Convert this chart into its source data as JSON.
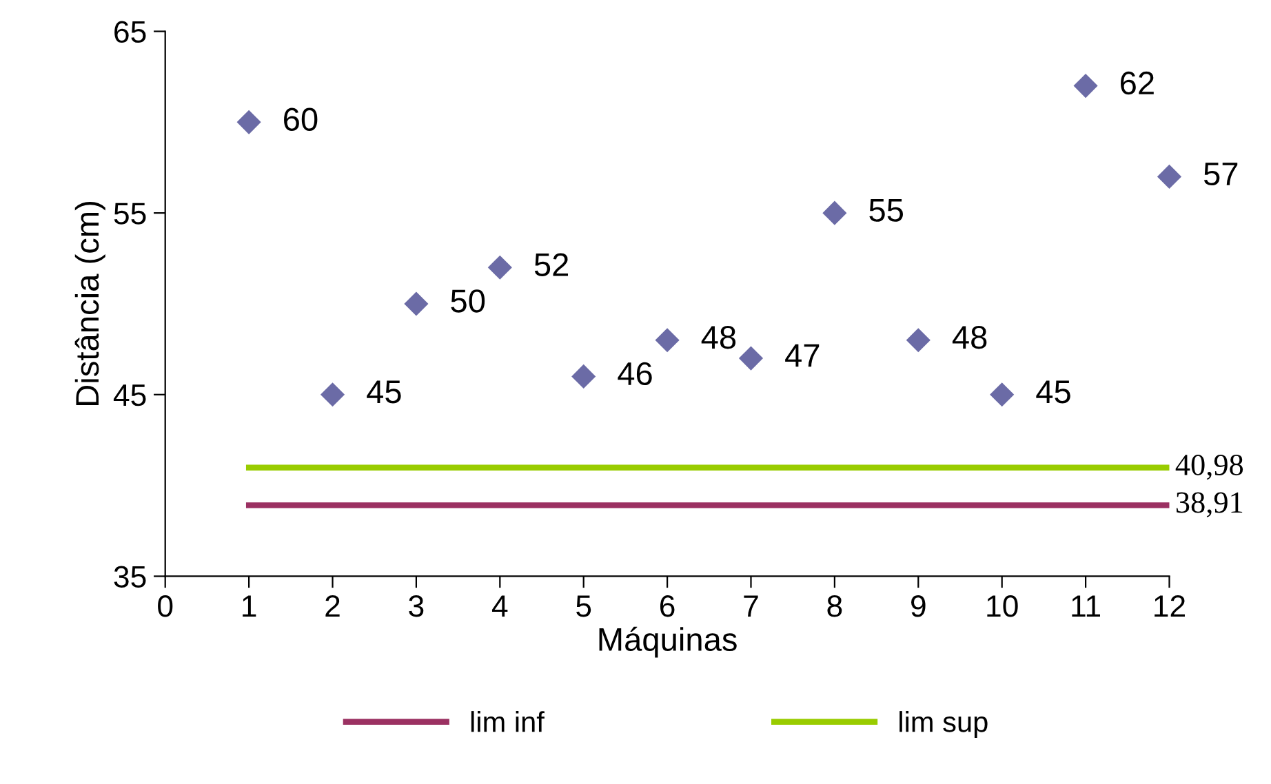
{
  "chart_data": {
    "type": "scatter",
    "xlabel": "Máquinas",
    "ylabel": "Distância (cm)",
    "xlim": [
      0,
      12
    ],
    "xticks": [
      0,
      1,
      2,
      3,
      4,
      5,
      6,
      7,
      8,
      9,
      10,
      11,
      12
    ],
    "ylim": [
      35,
      65
    ],
    "yticks": [
      35,
      45,
      55,
      65
    ],
    "grid": false,
    "legend": "bottom",
    "series": [
      {
        "color": "#6b6ba6",
        "marker": "diamond",
        "x": [
          1,
          2,
          3,
          4,
          5,
          6,
          7,
          8,
          9,
          10,
          11,
          12
        ],
        "values": [
          60,
          45,
          50,
          52,
          46,
          48,
          47,
          55,
          48,
          45,
          62,
          57
        ],
        "value_labels": [
          "60",
          "45",
          "50",
          "52",
          "46",
          "48",
          "47",
          "55",
          "48",
          "45",
          "62",
          "57"
        ]
      },
      {
        "type": "line",
        "name": "lim inf",
        "color": "#9b3162",
        "marker": "none",
        "line_style": "solid",
        "x": [
          1,
          12
        ],
        "values": [
          38.91,
          38.91
        ],
        "value_labels": [
          null,
          "38,91"
        ]
      },
      {
        "type": "line",
        "name": "lim sup",
        "color": "#99cc00",
        "marker": "none",
        "line_style": "solid",
        "x": [
          1,
          12
        ],
        "values": [
          40.98,
          40.98
        ],
        "value_labels": [
          null,
          "40,98"
        ]
      }
    ]
  }
}
